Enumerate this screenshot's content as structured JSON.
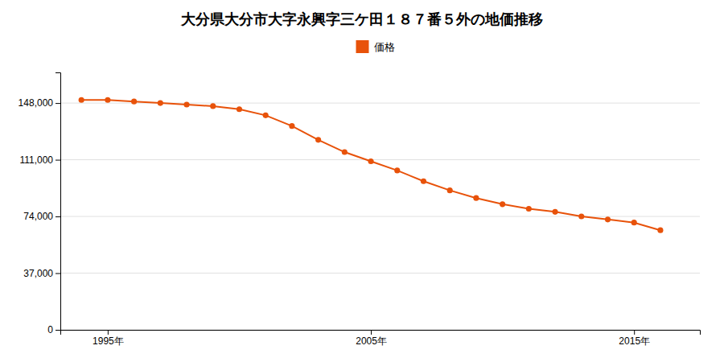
{
  "chart_data": {
    "type": "line",
    "title": "大分県大分市大字永興字三ケ田１８７番５外の地価推移",
    "x": [
      1994,
      1995,
      1996,
      1997,
      1998,
      1999,
      2000,
      2001,
      2002,
      2003,
      2004,
      2005,
      2006,
      2007,
      2008,
      2009,
      2010,
      2011,
      2012,
      2013,
      2014,
      2015,
      2016
    ],
    "series": [
      {
        "name": "価格",
        "color": "#E8520A",
        "marker": "circle",
        "values": [
          150000,
          150000,
          149000,
          148000,
          147000,
          146000,
          144000,
          140000,
          133000,
          124000,
          116000,
          110000,
          104000,
          97000,
          91000,
          86000,
          82000,
          79000,
          77000,
          74000,
          72000,
          70000,
          65000
        ]
      }
    ],
    "xlim": [
      1993.2,
      2017.5
    ],
    "xticks": [
      {
        "value": 1995,
        "label": "1995年"
      },
      {
        "value": 2005,
        "label": "2005年"
      },
      {
        "value": 2015,
        "label": "2015年"
      }
    ],
    "ylim": [
      0,
      168000
    ],
    "yticks": [
      0,
      {
        "value": 37000,
        "label": "37,000"
      },
      {
        "value": 74000,
        "label": "74,000"
      },
      {
        "value": 111000,
        "label": "111,000"
      },
      {
        "value": 148000,
        "label": "148,000"
      }
    ],
    "grid": true,
    "legend": "top"
  }
}
